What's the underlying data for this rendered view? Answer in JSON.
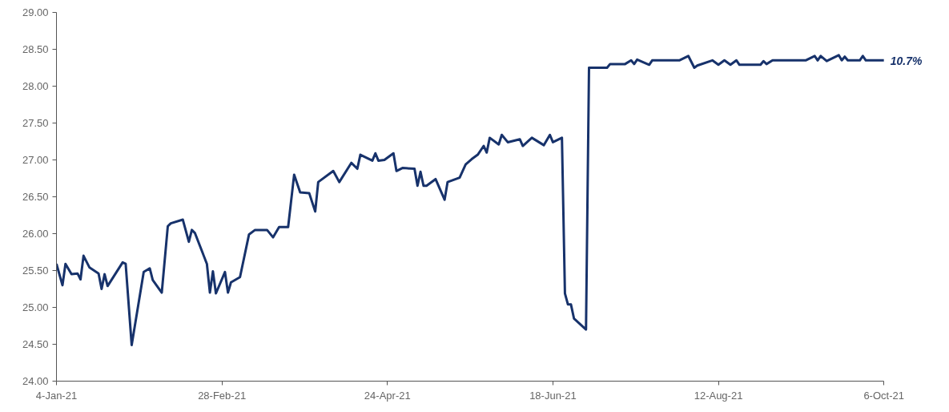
{
  "chart_data": {
    "type": "line",
    "x": [
      "2021-01-04",
      "2021-01-06",
      "2021-01-07",
      "2021-01-09",
      "2021-01-11",
      "2021-01-12",
      "2021-01-13",
      "2021-01-15",
      "2021-01-18",
      "2021-01-19",
      "2021-01-20",
      "2021-01-21",
      "2021-01-26",
      "2021-01-27",
      "2021-01-29",
      "2021-02-02",
      "2021-02-04",
      "2021-02-05",
      "2021-02-08",
      "2021-02-10",
      "2021-02-11",
      "2021-02-15",
      "2021-02-17",
      "2021-02-18",
      "2021-02-19",
      "2021-02-23",
      "2021-02-24",
      "2021-02-25",
      "2021-02-26",
      "2021-03-01",
      "2021-03-02",
      "2021-03-03",
      "2021-03-06",
      "2021-03-09",
      "2021-03-11",
      "2021-03-15",
      "2021-03-17",
      "2021-03-19",
      "2021-03-22",
      "2021-03-24",
      "2021-03-26",
      "2021-03-29",
      "2021-03-31",
      "2021-04-01",
      "2021-04-06",
      "2021-04-08",
      "2021-04-12",
      "2021-04-14",
      "2021-04-15",
      "2021-04-19",
      "2021-04-20",
      "2021-04-21",
      "2021-04-23",
      "2021-04-26",
      "2021-04-27",
      "2021-04-29",
      "2021-05-03",
      "2021-05-04",
      "2021-05-05",
      "2021-05-06",
      "2021-05-07",
      "2021-05-10",
      "2021-05-13",
      "2021-05-14",
      "2021-05-18",
      "2021-05-20",
      "2021-05-22",
      "2021-05-24",
      "2021-05-26",
      "2021-05-27",
      "2021-05-28",
      "2021-05-31",
      "2021-06-01",
      "2021-06-03",
      "2021-06-07",
      "2021-06-08",
      "2021-06-11",
      "2021-06-15",
      "2021-06-17",
      "2021-06-18",
      "2021-06-21",
      "2021-06-22",
      "2021-06-23",
      "2021-06-24",
      "2021-06-25",
      "2021-06-29",
      "2021-06-30",
      "2021-07-06",
      "2021-07-07",
      "2021-07-12",
      "2021-07-14",
      "2021-07-15",
      "2021-07-16",
      "2021-07-20",
      "2021-07-21",
      "2021-07-30",
      "2021-08-02",
      "2021-08-04",
      "2021-08-05",
      "2021-08-10",
      "2021-08-12",
      "2021-08-14",
      "2021-08-16",
      "2021-08-18",
      "2021-08-19",
      "2021-08-26",
      "2021-08-27",
      "2021-08-28",
      "2021-08-30",
      "2021-09-10",
      "2021-09-13",
      "2021-09-14",
      "2021-09-15",
      "2021-09-17",
      "2021-09-21",
      "2021-09-22",
      "2021-09-23",
      "2021-09-24",
      "2021-09-28",
      "2021-09-29",
      "2021-09-30",
      "2021-10-06"
    ],
    "series": [
      {
        "color": "#17326b",
        "values": [
          25.59,
          25.3,
          25.59,
          25.45,
          25.46,
          25.38,
          25.7,
          25.54,
          25.46,
          25.25,
          25.45,
          25.29,
          25.61,
          25.59,
          24.49,
          25.48,
          25.53,
          25.37,
          25.2,
          26.1,
          26.14,
          26.19,
          25.89,
          26.05,
          26.01,
          25.59,
          25.2,
          25.49,
          25.19,
          25.48,
          25.2,
          25.34,
          25.41,
          25.99,
          26.05,
          26.05,
          25.95,
          26.09,
          26.09,
          26.8,
          26.56,
          26.55,
          26.3,
          26.7,
          26.85,
          26.7,
          26.96,
          26.88,
          27.07,
          26.99,
          27.09,
          26.99,
          27.0,
          27.09,
          26.85,
          26.89,
          26.88,
          26.65,
          26.84,
          26.65,
          26.65,
          26.74,
          26.46,
          26.7,
          26.76,
          26.94,
          27.01,
          27.07,
          27.19,
          27.1,
          27.3,
          27.21,
          27.34,
          27.24,
          27.28,
          27.19,
          27.3,
          27.2,
          27.34,
          27.24,
          27.3,
          25.19,
          25.04,
          25.04,
          24.85,
          24.7,
          28.25,
          28.25,
          28.3,
          28.3,
          28.35,
          28.3,
          28.36,
          28.29,
          28.35,
          28.35,
          28.41,
          28.25,
          28.28,
          28.35,
          28.29,
          28.35,
          28.29,
          28.35,
          28.29,
          28.29,
          28.34,
          28.3,
          28.35,
          28.35,
          28.41,
          28.35,
          28.41,
          28.34,
          28.42,
          28.35,
          28.4,
          28.35,
          28.35,
          28.41,
          28.35,
          28.35
        ]
      }
    ],
    "xlim": [
      "2021-01-04",
      "2021-10-06"
    ],
    "xticks": [
      {
        "value": "2021-01-04",
        "label": "4-Jan-21"
      },
      {
        "value": "2021-02-28",
        "label": "28-Feb-21"
      },
      {
        "value": "2021-04-24",
        "label": "24-Apr-21"
      },
      {
        "value": "2021-06-18",
        "label": "18-Jun-21"
      },
      {
        "value": "2021-08-12",
        "label": "12-Aug-21"
      },
      {
        "value": "2021-10-06",
        "label": "6-Oct-21"
      }
    ],
    "ylim": [
      24,
      29
    ],
    "yticks": [
      {
        "value": 24,
        "label": "24.00"
      },
      {
        "value": 24.5,
        "label": "24.50"
      },
      {
        "value": 25,
        "label": "25.00"
      },
      {
        "value": 25.5,
        "label": "25.50"
      },
      {
        "value": 26,
        "label": "26.00"
      },
      {
        "value": 26.5,
        "label": "26.50"
      },
      {
        "value": 27,
        "label": "27.00"
      },
      {
        "value": 27.5,
        "label": "27.50"
      },
      {
        "value": 28,
        "label": "28.00"
      },
      {
        "value": 28.5,
        "label": "28.50"
      },
      {
        "value": 29,
        "label": "29.00"
      }
    ],
    "annotations": [
      {
        "text": "10.7%",
        "x": "2021-10-06",
        "y": 28.35
      }
    ],
    "grid": false,
    "marker": "none",
    "line_style": "solid"
  }
}
